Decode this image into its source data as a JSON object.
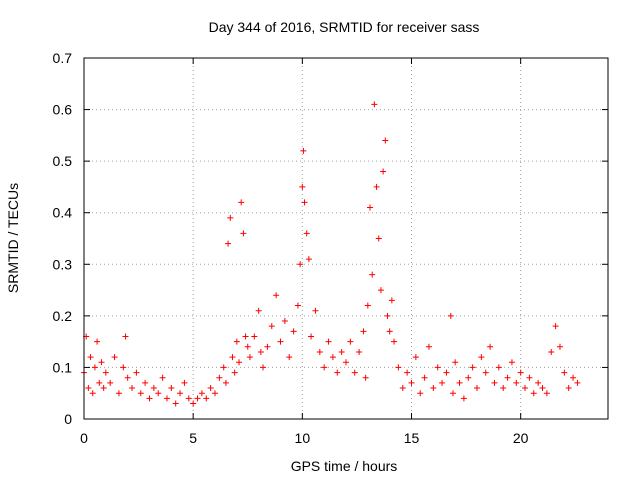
{
  "chart_data": {
    "type": "scatter",
    "title": "Day 344 of 2016, SRMTID for receiver sass",
    "xlabel": "GPS time / hours",
    "ylabel": "SRMTID / TECUs",
    "xlim": [
      0,
      24
    ],
    "ylim": [
      0,
      0.7
    ],
    "grid": true,
    "marker": "+",
    "color": "#ff0000",
    "x_ticks": [
      0,
      5,
      10,
      15,
      20
    ],
    "x_tick_labels": [
      "0",
      "5",
      "10",
      "15",
      "20"
    ],
    "y_ticks": [
      0,
      0.1,
      0.2,
      0.3,
      0.4,
      0.5,
      0.6,
      0.7
    ],
    "y_tick_labels": [
      "0",
      "0.1",
      "0.2",
      "0.3",
      "0.4",
      "0.5",
      "0.6",
      "0.7"
    ],
    "series": [
      {
        "name": "SRMTID",
        "x": [
          0.0,
          0.1,
          0.2,
          0.3,
          0.4,
          0.5,
          0.6,
          0.7,
          0.8,
          0.9,
          1.0,
          1.2,
          1.4,
          1.6,
          1.8,
          1.9,
          2.0,
          2.2,
          2.4,
          2.6,
          2.8,
          3.0,
          3.2,
          3.4,
          3.6,
          3.8,
          4.0,
          4.2,
          4.4,
          4.6,
          4.8,
          5.0,
          5.2,
          5.4,
          5.6,
          5.8,
          6.0,
          6.2,
          6.4,
          6.5,
          6.6,
          6.7,
          6.8,
          6.9,
          7.0,
          7.1,
          7.2,
          7.3,
          7.4,
          7.5,
          7.6,
          7.8,
          8.0,
          8.1,
          8.2,
          8.4,
          8.6,
          8.8,
          9.0,
          9.2,
          9.4,
          9.6,
          9.8,
          9.9,
          10.0,
          10.05,
          10.1,
          10.2,
          10.3,
          10.4,
          10.6,
          10.8,
          11.0,
          11.2,
          11.4,
          11.6,
          11.8,
          12.0,
          12.2,
          12.4,
          12.6,
          12.8,
          12.9,
          13.0,
          13.1,
          13.2,
          13.3,
          13.4,
          13.5,
          13.6,
          13.7,
          13.8,
          13.9,
          14.0,
          14.1,
          14.2,
          14.4,
          14.6,
          14.8,
          15.0,
          15.2,
          15.4,
          15.6,
          15.8,
          16.0,
          16.2,
          16.4,
          16.6,
          16.8,
          16.9,
          17.0,
          17.2,
          17.4,
          17.6,
          17.8,
          18.0,
          18.2,
          18.4,
          18.6,
          18.8,
          19.0,
          19.2,
          19.4,
          19.6,
          19.8,
          20.0,
          20.2,
          20.4,
          20.6,
          20.8,
          21.0,
          21.2,
          21.4,
          21.6,
          21.8,
          22.0,
          22.2,
          22.4,
          22.6
        ],
        "y": [
          0.09,
          0.16,
          0.06,
          0.12,
          0.05,
          0.1,
          0.15,
          0.07,
          0.11,
          0.06,
          0.09,
          0.07,
          0.12,
          0.05,
          0.1,
          0.16,
          0.08,
          0.06,
          0.09,
          0.05,
          0.07,
          0.04,
          0.06,
          0.05,
          0.08,
          0.04,
          0.06,
          0.03,
          0.05,
          0.07,
          0.04,
          0.03,
          0.04,
          0.05,
          0.04,
          0.06,
          0.05,
          0.08,
          0.1,
          0.07,
          0.34,
          0.39,
          0.12,
          0.09,
          0.15,
          0.11,
          0.42,
          0.36,
          0.16,
          0.14,
          0.12,
          0.16,
          0.21,
          0.13,
          0.1,
          0.14,
          0.18,
          0.24,
          0.15,
          0.19,
          0.12,
          0.17,
          0.22,
          0.3,
          0.45,
          0.52,
          0.42,
          0.36,
          0.31,
          0.16,
          0.21,
          0.13,
          0.1,
          0.15,
          0.12,
          0.09,
          0.13,
          0.11,
          0.15,
          0.09,
          0.13,
          0.17,
          0.08,
          0.22,
          0.41,
          0.28,
          0.61,
          0.45,
          0.35,
          0.25,
          0.48,
          0.54,
          0.2,
          0.17,
          0.23,
          0.15,
          0.1,
          0.06,
          0.09,
          0.07,
          0.12,
          0.05,
          0.08,
          0.14,
          0.06,
          0.1,
          0.07,
          0.09,
          0.2,
          0.05,
          0.11,
          0.07,
          0.04,
          0.08,
          0.1,
          0.06,
          0.12,
          0.09,
          0.14,
          0.07,
          0.1,
          0.06,
          0.08,
          0.11,
          0.07,
          0.09,
          0.06,
          0.08,
          0.05,
          0.07,
          0.06,
          0.05,
          0.13,
          0.18,
          0.14,
          0.09,
          0.06,
          0.08,
          0.07
        ]
      }
    ]
  }
}
